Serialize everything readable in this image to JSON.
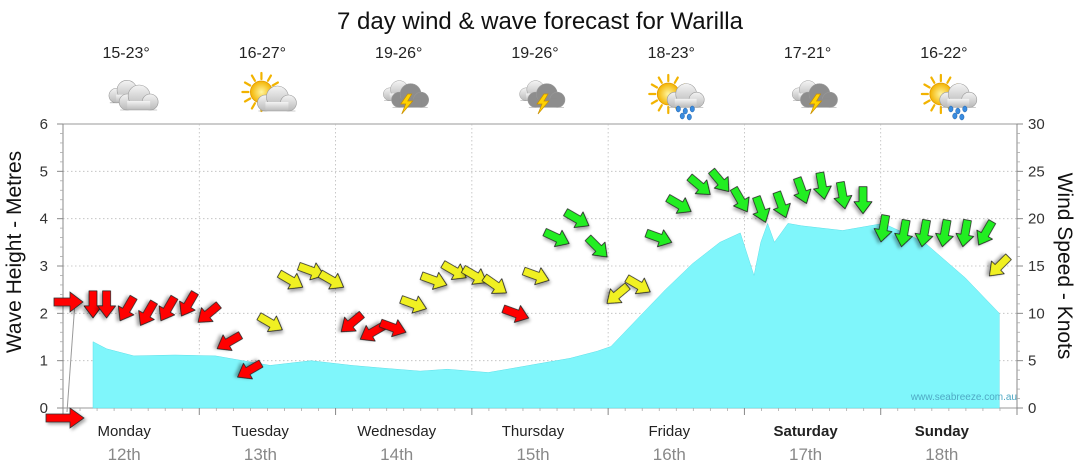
{
  "chart_data": {
    "type": "area",
    "title": "7 day wind & wave forecast for Warilla",
    "ylabel_left": "Wave Height - Metres",
    "ylabel_right": "Wind Speed - Knots",
    "ylim_left": [
      0,
      6
    ],
    "ylim_right": [
      0,
      30
    ],
    "yticks_left": [
      "0",
      "1",
      "2",
      "3",
      "4",
      "5",
      "6"
    ],
    "yticks_right": [
      "0",
      "5",
      "10",
      "15",
      "20",
      "25",
      "30"
    ],
    "grid": true,
    "watermark": "www.seabreeze.com.au",
    "days": [
      {
        "name": "Monday",
        "date": "12th",
        "temp": "15-23°",
        "icon": "cloudy-icon",
        "bold": false
      },
      {
        "name": "Tuesday",
        "date": "13th",
        "temp": "16-27°",
        "icon": "partly-cloudy-icon",
        "bold": false
      },
      {
        "name": "Wednesday",
        "date": "14th",
        "temp": "19-26°",
        "icon": "thunderstorm-icon",
        "bold": false
      },
      {
        "name": "Thursday",
        "date": "15th",
        "temp": "19-26°",
        "icon": "thunderstorm-icon",
        "bold": false
      },
      {
        "name": "Friday",
        "date": "16th",
        "temp": "18-23°",
        "icon": "sun-showers-icon",
        "bold": false
      },
      {
        "name": "Saturday",
        "date": "17th",
        "temp": "17-21°",
        "icon": "thunderstorm-icon",
        "bold": true
      },
      {
        "name": "Sunday",
        "date": "18th",
        "temp": "16-22°",
        "icon": "sun-showers-icon",
        "bold": true
      }
    ],
    "wave_series": {
      "name": "Wave Height (m)",
      "x": [
        0,
        0.1,
        0.3,
        0.6,
        0.9,
        1.1,
        1.3,
        1.6,
        1.9,
        2.1,
        2.4,
        2.6,
        2.9,
        3.1,
        3.3,
        3.5,
        3.7,
        3.8,
        4.0,
        4.2,
        4.4,
        4.6,
        4.75,
        4.85,
        4.9,
        4.95,
        5.0,
        5.05,
        5.1,
        5.2,
        5.5,
        5.8,
        6.1,
        6.4,
        6.65
      ],
      "values": [
        1.4,
        1.25,
        1.1,
        1.12,
        1.1,
        1.0,
        0.9,
        1.0,
        0.9,
        0.85,
        0.78,
        0.82,
        0.75,
        0.85,
        0.95,
        1.05,
        1.2,
        1.3,
        1.9,
        2.5,
        3.05,
        3.5,
        3.7,
        2.8,
        3.5,
        3.9,
        3.5,
        3.7,
        3.9,
        3.85,
        3.75,
        3.9,
        3.5,
        2.75,
        2.0
      ]
    },
    "wind_series": {
      "name": "Wind (knots)",
      "color_scale": {
        "calm": "#ff0000",
        "moderate": "#f0f020",
        "fresh": "#22ee22"
      },
      "x": [
        0,
        0.1,
        0.25,
        0.4,
        0.55,
        0.7,
        0.85,
        1.0,
        1.15,
        1.3,
        1.45,
        1.6,
        1.75,
        1.9,
        2.05,
        2.2,
        2.35,
        2.5,
        2.65,
        2.8,
        2.95,
        3.1,
        3.25,
        3.4,
        3.55,
        3.7,
        3.85,
        4.0,
        4.15,
        4.3,
        4.45,
        4.6,
        4.75,
        4.9,
        5.05,
        5.2,
        5.35,
        5.5,
        5.65,
        5.8,
        5.95,
        6.1,
        6.25,
        6.4,
        6.55,
        6.65
      ],
      "values": [
        11,
        11,
        10.5,
        10,
        10.5,
        11,
        10,
        7,
        4,
        9,
        13.5,
        14.5,
        13.5,
        9,
        8,
        8.5,
        11,
        13.5,
        14.5,
        14,
        13,
        10,
        14,
        18,
        20,
        17,
        12,
        13,
        18,
        21.5,
        23.5,
        24,
        22,
        21,
        21.5,
        23,
        23.5,
        22.5,
        22,
        19,
        18.5,
        18.5,
        18.5,
        18.5,
        18.5,
        15
      ],
      "direction_deg": [
        270,
        270,
        300,
        300,
        300,
        300,
        320,
        330,
        330,
        210,
        210,
        200,
        210,
        320,
        330,
        200,
        200,
        200,
        210,
        210,
        215,
        200,
        200,
        205,
        210,
        225,
        320,
        210,
        200,
        210,
        220,
        230,
        240,
        250,
        250,
        250,
        260,
        260,
        270,
        280,
        280,
        280,
        280,
        280,
        300,
        315
      ],
      "colors": [
        "#ff0000",
        "#ff0000",
        "#ff0000",
        "#ff0000",
        "#ff0000",
        "#ff0000",
        "#ff0000",
        "#ff0000",
        "#ff0000",
        "#f0f020",
        "#f0f020",
        "#f0f020",
        "#f0f020",
        "#ff0000",
        "#ff0000",
        "#ff0000",
        "#f0f020",
        "#f0f020",
        "#f0f020",
        "#f0f020",
        "#f0f020",
        "#ff0000",
        "#f0f020",
        "#22ee22",
        "#22ee22",
        "#22ee22",
        "#f0f020",
        "#f0f020",
        "#22ee22",
        "#22ee22",
        "#22ee22",
        "#22ee22",
        "#22ee22",
        "#22ee22",
        "#22ee22",
        "#22ee22",
        "#22ee22",
        "#22ee22",
        "#22ee22",
        "#22ee22",
        "#22ee22",
        "#22ee22",
        "#22ee22",
        "#22ee22",
        "#22ee22",
        "#f0f020"
      ]
    }
  }
}
